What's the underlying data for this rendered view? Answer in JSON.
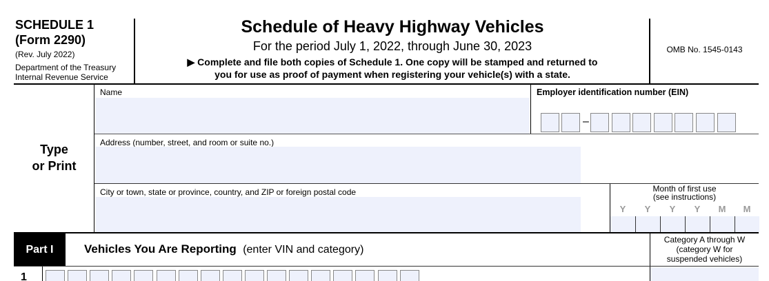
{
  "header": {
    "schedule": "SCHEDULE 1",
    "form": "(Form 2290)",
    "rev": "(Rev. July 2022)",
    "dept": "Department of the Treasury",
    "irs": "Internal Revenue Service",
    "title": "Schedule of Heavy Highway Vehicles",
    "period": "For the period July 1, 2022, through June 30, 2023",
    "instruction_line1": "Complete and file both copies of Schedule 1. One copy will be stamped and returned to",
    "instruction_line2": "you for use as proof of payment when registering your vehicle(s) with a state.",
    "omb": "OMB No. 1545-0143"
  },
  "side_label": {
    "line1": "Type",
    "line2": "or Print"
  },
  "fields": {
    "name_label": "Name",
    "name_value": "",
    "ein_label": "Employer identification number (EIN)",
    "ein_dash": "–",
    "address_label": "Address (number, street, and room or suite no.)",
    "address_value": "",
    "city_label": "City or town, state or province, country, and ZIP or foreign postal code",
    "city_value": "",
    "month_label_1": "Month of first use",
    "month_label_2": "(see instructions)",
    "month_letters": [
      "Y",
      "Y",
      "Y",
      "Y",
      "M",
      "M"
    ]
  },
  "part1": {
    "badge": "Part I",
    "title": "Vehicles You Are Reporting",
    "subtitle": "(enter VIN and category)",
    "category_label_1": "Category A through W",
    "category_label_2": "(category W for",
    "category_label_3": "suspended vehicles)",
    "row_number": "1"
  },
  "colors": {
    "field_fill": "#eef1fc",
    "letter_gray": "#9a9a9a"
  }
}
